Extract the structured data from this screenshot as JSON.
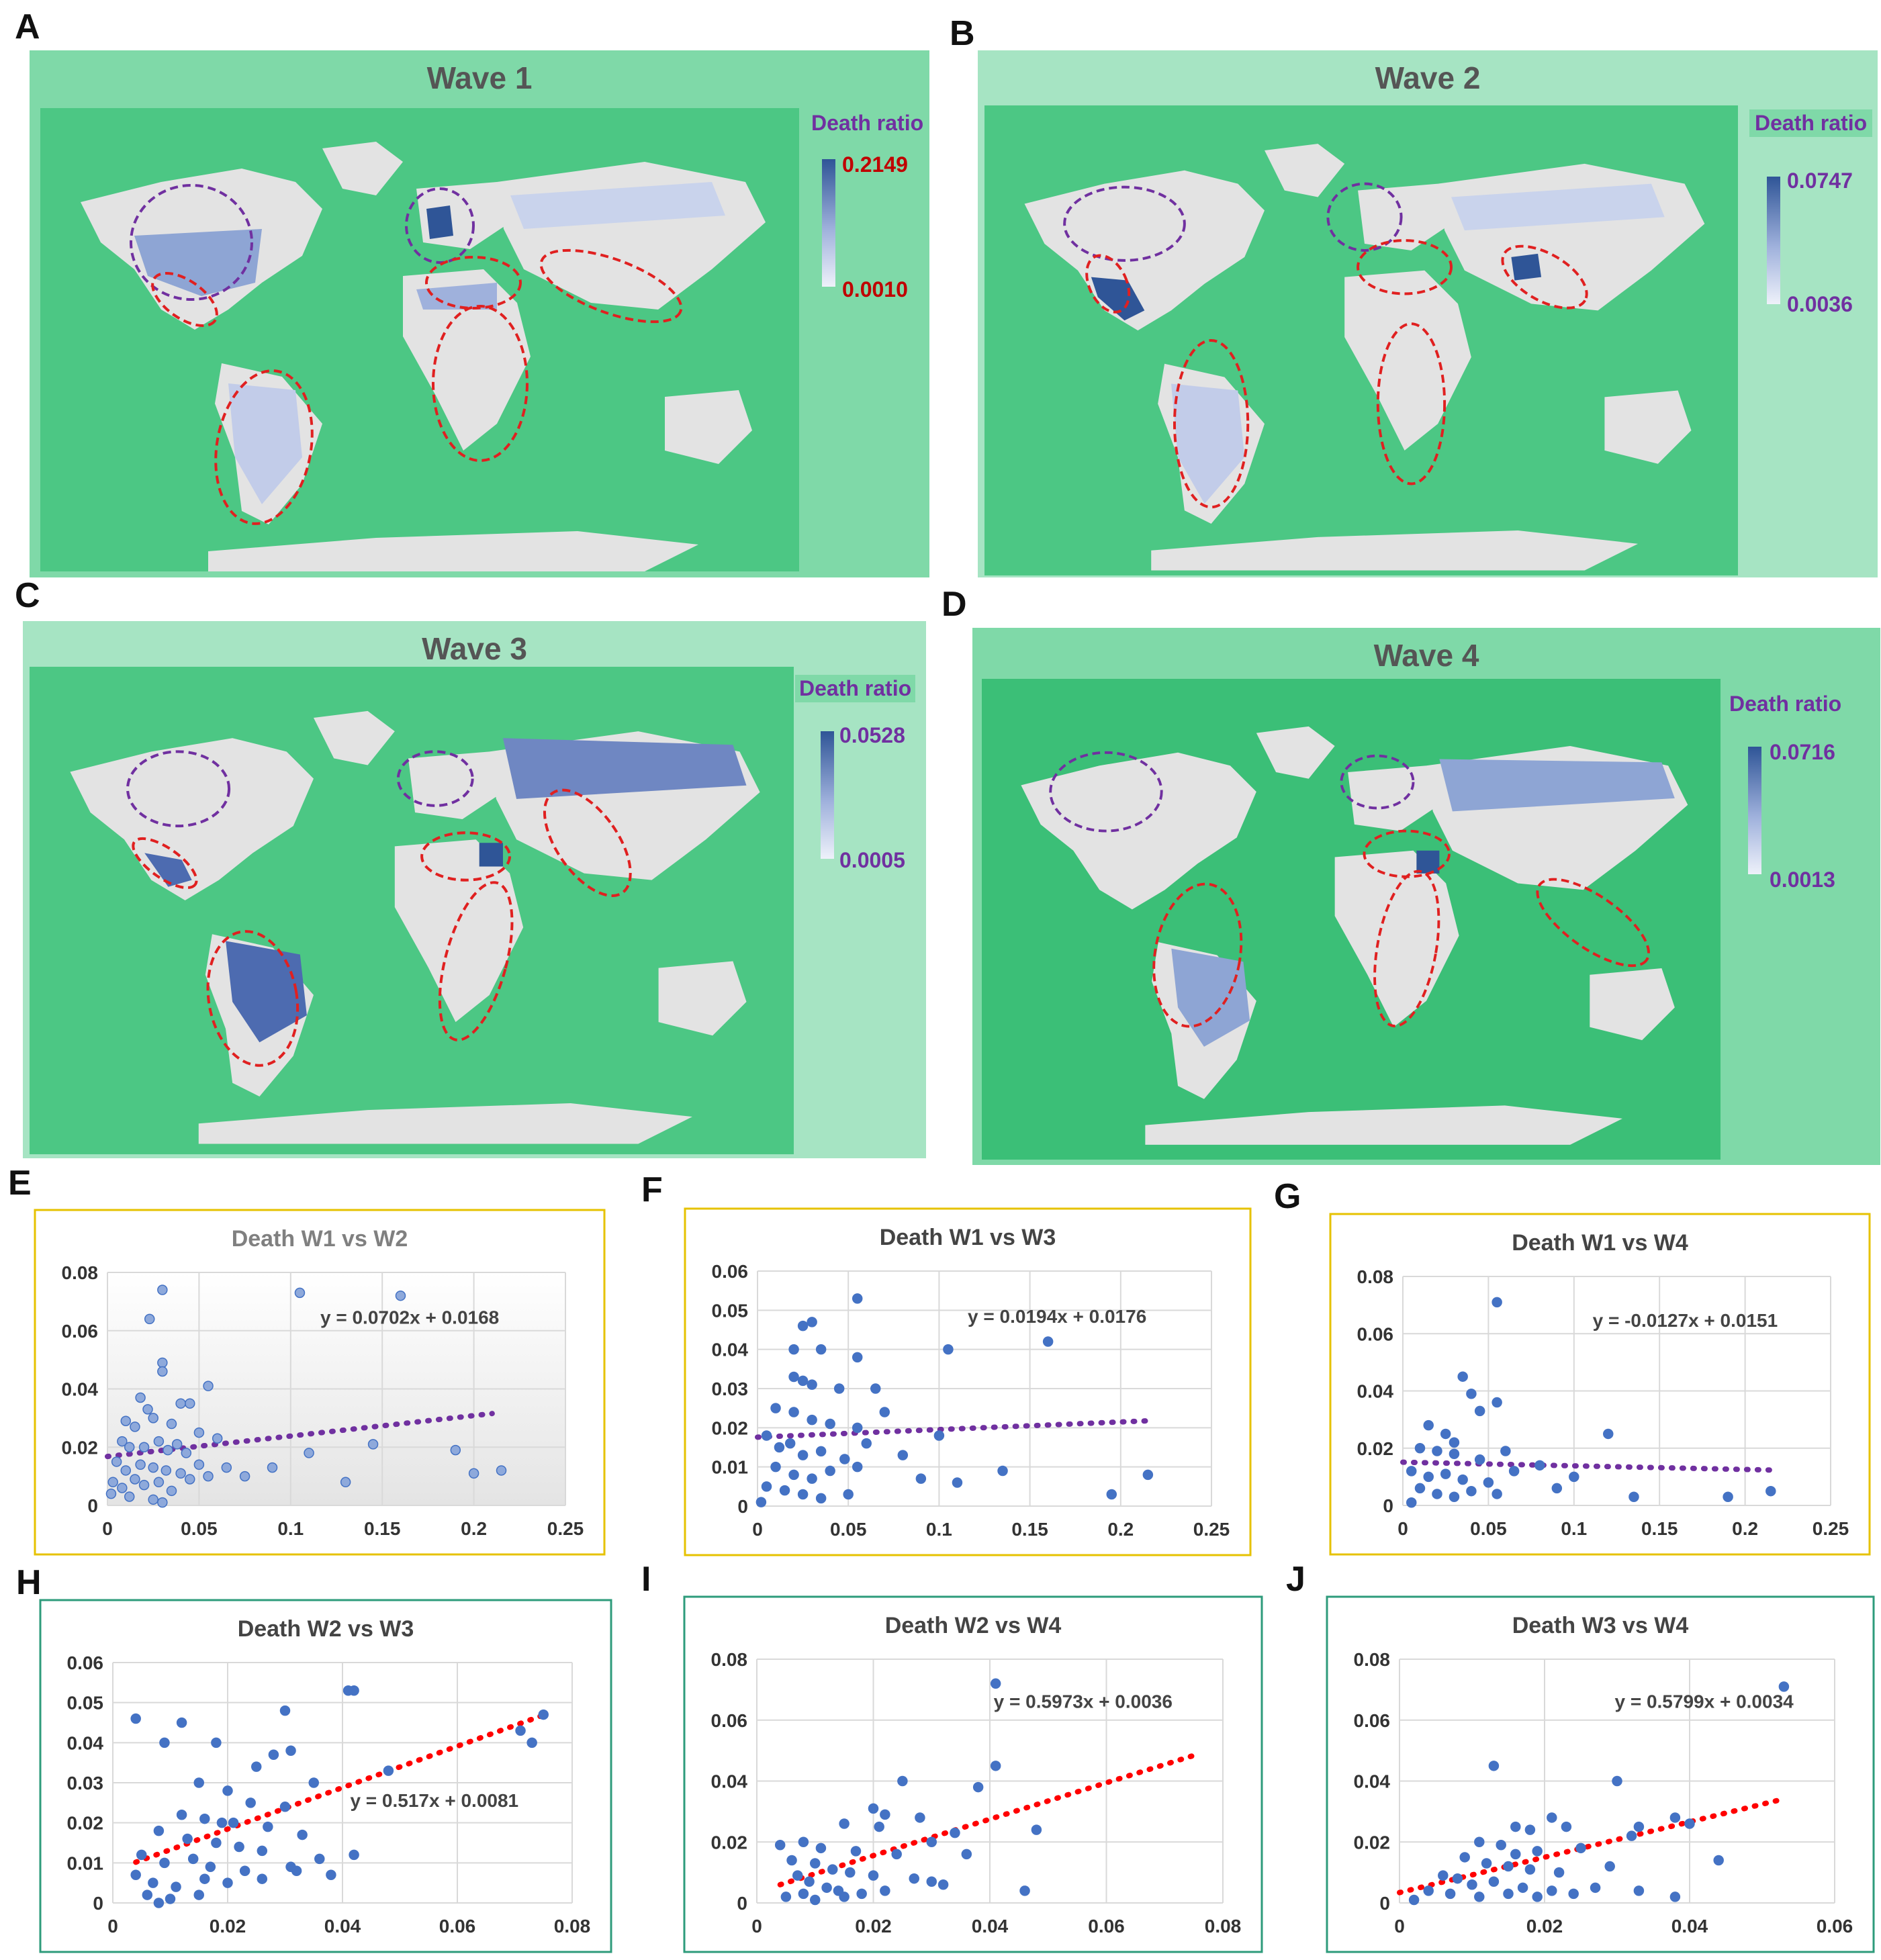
{
  "panel_labels": {
    "A": "A",
    "B": "B",
    "C": "C",
    "D": "D",
    "E": "E",
    "F": "F",
    "G": "G",
    "H": "H",
    "I": "I",
    "J": "J"
  },
  "maps": [
    {
      "label": "A",
      "title": "Wave 1",
      "legend_title": "Death ratio",
      "max": "0.2149",
      "min": "0.0010",
      "value_color": "#c00000"
    },
    {
      "label": "B",
      "title": "Wave 2",
      "legend_title": "Death ratio",
      "max": "0.0747",
      "min": "0.0036",
      "value_color": "#7030a0"
    },
    {
      "label": "C",
      "title": "Wave 3",
      "legend_title": "Death ratio",
      "max": "0.0528",
      "min": "0.0005",
      "value_color": "#7030a0"
    },
    {
      "label": "D",
      "title": "Wave 4",
      "legend_title": "Death ratio",
      "max": "0.0716",
      "min": "0.0013",
      "value_color": "#7030a0"
    }
  ],
  "colors": {
    "map_outer": "#7fd9a8",
    "map_inner": "#4cc784",
    "land": "#e3e3e3",
    "choropleth_dark": "#2f5597",
    "highlight_red": "#e02020",
    "highlight_purple": "#7030a0",
    "point_blue": "#4472c4",
    "trend_purple": "#7030a0",
    "trend_red": "#ff0000",
    "border_gold": "#e6c200",
    "border_teal": "#2e9b7b"
  },
  "chart_data": [
    {
      "id": "E",
      "type": "scatter",
      "title": "Death W1 vs W2",
      "xlim": [
        0,
        0.25
      ],
      "ylim": [
        0,
        0.08
      ],
      "xticks": [
        "0",
        "0.05",
        "0.1",
        "0.15",
        "0.2",
        "0.25"
      ],
      "yticks": [
        "0",
        "0.02",
        "0.04",
        "0.06",
        "0.08"
      ],
      "trendline": {
        "slope": 0.0702,
        "intercept": 0.0168,
        "label": "y = 0.0702x + 0.0168",
        "x_range": [
          0,
          0.21
        ]
      },
      "points": [
        [
          0.03,
          0.074
        ],
        [
          0.023,
          0.064
        ],
        [
          0.03,
          0.049
        ],
        [
          0.03,
          0.046
        ],
        [
          0.105,
          0.073
        ],
        [
          0.16,
          0.072
        ],
        [
          0.055,
          0.041
        ],
        [
          0.045,
          0.035
        ],
        [
          0.04,
          0.035
        ],
        [
          0.018,
          0.037
        ],
        [
          0.022,
          0.033
        ],
        [
          0.01,
          0.029
        ],
        [
          0.015,
          0.027
        ],
        [
          0.025,
          0.03
        ],
        [
          0.035,
          0.028
        ],
        [
          0.05,
          0.025
        ],
        [
          0.008,
          0.022
        ],
        [
          0.012,
          0.02
        ],
        [
          0.02,
          0.02
        ],
        [
          0.028,
          0.022
        ],
        [
          0.033,
          0.019
        ],
        [
          0.038,
          0.021
        ],
        [
          0.043,
          0.018
        ],
        [
          0.06,
          0.023
        ],
        [
          0.005,
          0.015
        ],
        [
          0.01,
          0.012
        ],
        [
          0.018,
          0.014
        ],
        [
          0.025,
          0.013
        ],
        [
          0.032,
          0.012
        ],
        [
          0.04,
          0.011
        ],
        [
          0.05,
          0.014
        ],
        [
          0.065,
          0.013
        ],
        [
          0.003,
          0.008
        ],
        [
          0.008,
          0.006
        ],
        [
          0.015,
          0.009
        ],
        [
          0.02,
          0.007
        ],
        [
          0.028,
          0.008
        ],
        [
          0.035,
          0.005
        ],
        [
          0.045,
          0.009
        ],
        [
          0.055,
          0.01
        ],
        [
          0.075,
          0.01
        ],
        [
          0.09,
          0.013
        ],
        [
          0.11,
          0.018
        ],
        [
          0.13,
          0.008
        ],
        [
          0.145,
          0.021
        ],
        [
          0.19,
          0.019
        ],
        [
          0.2,
          0.011
        ],
        [
          0.215,
          0.012
        ],
        [
          0.012,
          0.003
        ],
        [
          0.025,
          0.002
        ],
        [
          0.03,
          0.001
        ],
        [
          0.002,
          0.004
        ]
      ]
    },
    {
      "id": "F",
      "type": "scatter",
      "title": "Death W1 vs W3",
      "xlim": [
        0,
        0.25
      ],
      "ylim": [
        0,
        0.06
      ],
      "xticks": [
        "0",
        "0.05",
        "0.1",
        "0.15",
        "0.2",
        "0.25"
      ],
      "yticks": [
        "0",
        "0.01",
        "0.02",
        "0.03",
        "0.04",
        "0.05",
        "0.06"
      ],
      "trendline": {
        "slope": 0.0194,
        "intercept": 0.0176,
        "label": "y = 0.0194x + 0.0176",
        "x_range": [
          0,
          0.215
        ]
      },
      "points": [
        [
          0.055,
          0.053
        ],
        [
          0.03,
          0.047
        ],
        [
          0.025,
          0.046
        ],
        [
          0.02,
          0.04
        ],
        [
          0.035,
          0.04
        ],
        [
          0.055,
          0.038
        ],
        [
          0.105,
          0.04
        ],
        [
          0.16,
          0.042
        ],
        [
          0.02,
          0.033
        ],
        [
          0.025,
          0.032
        ],
        [
          0.03,
          0.031
        ],
        [
          0.045,
          0.03
        ],
        [
          0.065,
          0.03
        ],
        [
          0.01,
          0.025
        ],
        [
          0.02,
          0.024
        ],
        [
          0.03,
          0.022
        ],
        [
          0.04,
          0.021
        ],
        [
          0.055,
          0.02
        ],
        [
          0.07,
          0.024
        ],
        [
          0.005,
          0.018
        ],
        [
          0.012,
          0.015
        ],
        [
          0.018,
          0.016
        ],
        [
          0.025,
          0.013
        ],
        [
          0.035,
          0.014
        ],
        [
          0.048,
          0.012
        ],
        [
          0.06,
          0.016
        ],
        [
          0.01,
          0.01
        ],
        [
          0.02,
          0.008
        ],
        [
          0.03,
          0.007
        ],
        [
          0.04,
          0.009
        ],
        [
          0.055,
          0.01
        ],
        [
          0.08,
          0.013
        ],
        [
          0.1,
          0.018
        ],
        [
          0.135,
          0.009
        ],
        [
          0.005,
          0.005
        ],
        [
          0.015,
          0.004
        ],
        [
          0.025,
          0.003
        ],
        [
          0.035,
          0.002
        ],
        [
          0.05,
          0.003
        ],
        [
          0.09,
          0.007
        ],
        [
          0.11,
          0.006
        ],
        [
          0.195,
          0.003
        ],
        [
          0.215,
          0.008
        ],
        [
          0.002,
          0.001
        ]
      ]
    },
    {
      "id": "G",
      "type": "scatter",
      "title": "Death W1 vs W4",
      "xlim": [
        0,
        0.25
      ],
      "ylim": [
        0,
        0.08
      ],
      "xticks": [
        "0",
        "0.05",
        "0.1",
        "0.15",
        "0.2",
        "0.25"
      ],
      "yticks": [
        "0",
        "0.02",
        "0.04",
        "0.06",
        "0.08"
      ],
      "trendline": {
        "slope": -0.0127,
        "intercept": 0.0151,
        "label": "y = -0.0127x + 0.0151",
        "x_range": [
          0,
          0.215
        ]
      },
      "points": [
        [
          0.055,
          0.071
        ],
        [
          0.035,
          0.045
        ],
        [
          0.04,
          0.039
        ],
        [
          0.055,
          0.036
        ],
        [
          0.045,
          0.033
        ],
        [
          0.015,
          0.028
        ],
        [
          0.025,
          0.025
        ],
        [
          0.03,
          0.022
        ],
        [
          0.12,
          0.025
        ],
        [
          0.01,
          0.02
        ],
        [
          0.02,
          0.019
        ],
        [
          0.03,
          0.018
        ],
        [
          0.045,
          0.016
        ],
        [
          0.06,
          0.019
        ],
        [
          0.08,
          0.014
        ],
        [
          0.005,
          0.012
        ],
        [
          0.015,
          0.01
        ],
        [
          0.025,
          0.011
        ],
        [
          0.035,
          0.009
        ],
        [
          0.05,
          0.008
        ],
        [
          0.065,
          0.012
        ],
        [
          0.1,
          0.01
        ],
        [
          0.01,
          0.006
        ],
        [
          0.02,
          0.004
        ],
        [
          0.03,
          0.003
        ],
        [
          0.04,
          0.005
        ],
        [
          0.055,
          0.004
        ],
        [
          0.09,
          0.006
        ],
        [
          0.135,
          0.003
        ],
        [
          0.19,
          0.003
        ],
        [
          0.215,
          0.005
        ],
        [
          0.005,
          0.001
        ]
      ]
    },
    {
      "id": "H",
      "type": "scatter",
      "title": "Death W2 vs W3",
      "xlim": [
        0,
        0.08
      ],
      "ylim": [
        0,
        0.06
      ],
      "xticks": [
        "0",
        "0.02",
        "0.04",
        "0.06",
        "0.08"
      ],
      "yticks": [
        "0",
        "0.01",
        "0.02",
        "0.03",
        "0.04",
        "0.05",
        "0.06"
      ],
      "trendline": {
        "slope": 0.517,
        "intercept": 0.0081,
        "label": "y = 0.517x + 0.0081",
        "x_range": [
          0.004,
          0.075
        ]
      },
      "points": [
        [
          0.004,
          0.046
        ],
        [
          0.012,
          0.045
        ],
        [
          0.009,
          0.04
        ],
        [
          0.018,
          0.04
        ],
        [
          0.041,
          0.053
        ],
        [
          0.042,
          0.053
        ],
        [
          0.03,
          0.048
        ],
        [
          0.075,
          0.047
        ],
        [
          0.071,
          0.043
        ],
        [
          0.073,
          0.04
        ],
        [
          0.028,
          0.037
        ],
        [
          0.031,
          0.038
        ],
        [
          0.025,
          0.034
        ],
        [
          0.035,
          0.03
        ],
        [
          0.048,
          0.033
        ],
        [
          0.015,
          0.03
        ],
        [
          0.02,
          0.028
        ],
        [
          0.024,
          0.025
        ],
        [
          0.03,
          0.024
        ],
        [
          0.012,
          0.022
        ],
        [
          0.016,
          0.021
        ],
        [
          0.019,
          0.02
        ],
        [
          0.021,
          0.02
        ],
        [
          0.027,
          0.019
        ],
        [
          0.033,
          0.017
        ],
        [
          0.008,
          0.018
        ],
        [
          0.013,
          0.016
        ],
        [
          0.018,
          0.015
        ],
        [
          0.022,
          0.014
        ],
        [
          0.026,
          0.013
        ],
        [
          0.005,
          0.012
        ],
        [
          0.009,
          0.01
        ],
        [
          0.014,
          0.011
        ],
        [
          0.017,
          0.009
        ],
        [
          0.023,
          0.008
        ],
        [
          0.031,
          0.009
        ],
        [
          0.042,
          0.012
        ],
        [
          0.036,
          0.011
        ],
        [
          0.004,
          0.007
        ],
        [
          0.007,
          0.005
        ],
        [
          0.011,
          0.004
        ],
        [
          0.016,
          0.006
        ],
        [
          0.02,
          0.005
        ],
        [
          0.026,
          0.006
        ],
        [
          0.032,
          0.008
        ],
        [
          0.038,
          0.007
        ],
        [
          0.006,
          0.002
        ],
        [
          0.01,
          0.001
        ],
        [
          0.015,
          0.002
        ],
        [
          0.008,
          0.0
        ]
      ]
    },
    {
      "id": "I",
      "type": "scatter",
      "title": "Death W2 vs W4",
      "xlim": [
        0,
        0.08
      ],
      "ylim": [
        0,
        0.08
      ],
      "xticks": [
        "0",
        "0.02",
        "0.04",
        "0.06",
        "0.08"
      ],
      "yticks": [
        "0",
        "0.02",
        "0.04",
        "0.06",
        "0.08"
      ],
      "trendline": {
        "slope": 0.5973,
        "intercept": 0.0036,
        "label": "y = 0.5973x + 0.0036",
        "x_range": [
          0.004,
          0.075
        ]
      },
      "points": [
        [
          0.041,
          0.072
        ],
        [
          0.041,
          0.045
        ],
        [
          0.025,
          0.04
        ],
        [
          0.038,
          0.038
        ],
        [
          0.02,
          0.031
        ],
        [
          0.022,
          0.029
        ],
        [
          0.028,
          0.028
        ],
        [
          0.015,
          0.026
        ],
        [
          0.021,
          0.025
        ],
        [
          0.034,
          0.023
        ],
        [
          0.048,
          0.024
        ],
        [
          0.03,
          0.02
        ],
        [
          0.008,
          0.02
        ],
        [
          0.011,
          0.018
        ],
        [
          0.017,
          0.017
        ],
        [
          0.024,
          0.016
        ],
        [
          0.036,
          0.016
        ],
        [
          0.004,
          0.019
        ],
        [
          0.006,
          0.014
        ],
        [
          0.01,
          0.013
        ],
        [
          0.013,
          0.011
        ],
        [
          0.016,
          0.01
        ],
        [
          0.02,
          0.009
        ],
        [
          0.027,
          0.008
        ],
        [
          0.032,
          0.006
        ],
        [
          0.007,
          0.009
        ],
        [
          0.009,
          0.007
        ],
        [
          0.012,
          0.005
        ],
        [
          0.014,
          0.004
        ],
        [
          0.018,
          0.003
        ],
        [
          0.022,
          0.004
        ],
        [
          0.03,
          0.007
        ],
        [
          0.046,
          0.004
        ],
        [
          0.005,
          0.002
        ],
        [
          0.008,
          0.003
        ],
        [
          0.01,
          0.001
        ],
        [
          0.015,
          0.002
        ]
      ]
    },
    {
      "id": "J",
      "type": "scatter",
      "title": "Death W3 vs W4",
      "xlim": [
        0,
        0.06
      ],
      "ylim": [
        0,
        0.08
      ],
      "xticks": [
        "0",
        "0.02",
        "0.04",
        "0.06"
      ],
      "yticks": [
        "0",
        "0.02",
        "0.04",
        "0.06",
        "0.08"
      ],
      "trendline": {
        "slope": 0.5799,
        "intercept": 0.0034,
        "label": "y = 0.5799x + 0.0034",
        "x_range": [
          0,
          0.052
        ]
      },
      "points": [
        [
          0.053,
          0.071
        ],
        [
          0.013,
          0.045
        ],
        [
          0.03,
          0.04
        ],
        [
          0.021,
          0.028
        ],
        [
          0.023,
          0.025
        ],
        [
          0.033,
          0.025
        ],
        [
          0.038,
          0.028
        ],
        [
          0.04,
          0.026
        ],
        [
          0.016,
          0.025
        ],
        [
          0.018,
          0.024
        ],
        [
          0.011,
          0.02
        ],
        [
          0.014,
          0.019
        ],
        [
          0.016,
          0.016
        ],
        [
          0.019,
          0.017
        ],
        [
          0.025,
          0.018
        ],
        [
          0.032,
          0.022
        ],
        [
          0.009,
          0.015
        ],
        [
          0.012,
          0.013
        ],
        [
          0.015,
          0.012
        ],
        [
          0.018,
          0.011
        ],
        [
          0.022,
          0.01
        ],
        [
          0.029,
          0.012
        ],
        [
          0.044,
          0.014
        ],
        [
          0.006,
          0.009
        ],
        [
          0.008,
          0.008
        ],
        [
          0.01,
          0.006
        ],
        [
          0.013,
          0.007
        ],
        [
          0.017,
          0.005
        ],
        [
          0.021,
          0.004
        ],
        [
          0.027,
          0.005
        ],
        [
          0.033,
          0.004
        ],
        [
          0.004,
          0.004
        ],
        [
          0.007,
          0.003
        ],
        [
          0.011,
          0.002
        ],
        [
          0.015,
          0.003
        ],
        [
          0.019,
          0.002
        ],
        [
          0.024,
          0.003
        ],
        [
          0.038,
          0.002
        ],
        [
          0.002,
          0.001
        ]
      ]
    }
  ]
}
